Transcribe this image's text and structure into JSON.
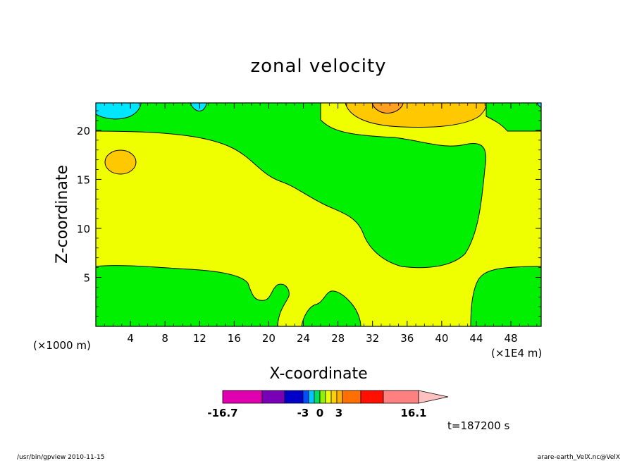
{
  "chart_data": {
    "type": "heatmap",
    "title": "zonal velocity",
    "xlabel": "X-coordinate",
    "ylabel": "Z-coordinate",
    "x_unit_left": "(×1000 m)",
    "x_unit_right": "(×1E4 m)",
    "xlim": [
      0,
      51.5
    ],
    "ylim": [
      0,
      22.8
    ],
    "x_ticks": [
      "4",
      "8",
      "12",
      "16",
      "20",
      "24",
      "28",
      "32",
      "36",
      "40",
      "44",
      "48"
    ],
    "y_ticks": [
      "5",
      "10",
      "15",
      "20"
    ],
    "x_tick_values": [
      4,
      8,
      12,
      16,
      20,
      24,
      28,
      32,
      36,
      40,
      44,
      48
    ],
    "y_tick_values": [
      5,
      10,
      15,
      20
    ],
    "colorbar": {
      "min_label": "-16.7",
      "max_label": "16.1",
      "inner_labels": [
        "-3",
        "0",
        "3"
      ],
      "colors": [
        "#e000b0",
        "#7a00b8",
        "#0000c8",
        "#0050ff",
        "#00c8ff",
        "#00e060",
        "#8ff000",
        "#f0ff00",
        "#ffd000",
        "#ffb000",
        "#ff7000",
        "#ff1000",
        "#ff8080",
        "#ffc0c0"
      ],
      "level_colors_used": {
        "cyan": "#00e6ff",
        "green": "#00f000",
        "yellow": "#f0ff00",
        "gold": "#ffc800",
        "orange": "#ffa020"
      }
    },
    "time_label": "t=187200 s",
    "grid": false,
    "legend": "colorbar below plot"
  },
  "footer": {
    "left": "/usr/bin/gpview   2010-11-15",
    "right": "arare-earth_VelX.nc@VelX"
  }
}
